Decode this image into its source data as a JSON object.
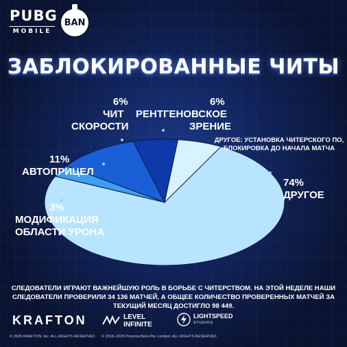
{
  "header": {
    "logo_big": "PUBG",
    "logo_small": "MOBILE",
    "ban_badge": "BAN"
  },
  "chart_data": {
    "type": "pie",
    "title": "ЗАБЛОКИРОВАННЫЕ ЧИТЫ",
    "slices": [
      {
        "label_lines": [
          "ДРУГОЕ"
        ],
        "pct": "74%",
        "value": 74,
        "color": "#b8e4ff"
      },
      {
        "label_lines": [
          "МОДИФИКАЦИЯ",
          "ОБЛАСТИ УРОНА"
        ],
        "pct": "3%",
        "value": 3,
        "color": "#3e9ff0"
      },
      {
        "label_lines": [
          "АВТОПРИЦЕЛ"
        ],
        "pct": "11%",
        "value": 11,
        "color": "#1a5fd6"
      },
      {
        "label_lines": [
          "ЧИТ",
          "СКОРОСТИ"
        ],
        "pct": "6%",
        "value": 6,
        "color": "#0d3aa8"
      },
      {
        "label_lines": [
          "РЕНТГЕНОВСКОЕ",
          "ЗРЕНИЕ"
        ],
        "pct": "6%",
        "value": 6,
        "color": "#d8f3ff"
      }
    ],
    "annotation": "ДРУГОЕ: УСТАНОВКА ЧИТЕРСКОГО ПО, БЛОКИРОВКА ДО НАЧАЛА МАТЧА"
  },
  "footer": {
    "text": "СЛЕДОВАТЕЛИ ИГРАЮТ ВАЖНЕЙШУЮ РОЛЬ В БОРЬБЕ С ЧИТЕРСТВОМ. НА ЭТОЙ НЕДЕЛЕ НАШИ СЛЕДОВАТЕЛИ ПРОВЕРИЛИ 34 136 МАТЧЕЙ, А ОБЩЕЕ КОЛИЧЕСТВО ПРОВЕРЕННЫХ МАТЧЕЙ ЗА ТЕКУЩИЙ МЕСЯЦ ДОСТИГЛО 98 449.",
    "krafton": "KRAFTON",
    "level_line1": "LEVEL",
    "level_line2": "INFINITE",
    "lightspeed": "LIGHTSPEED",
    "lightspeed_sub": "STUDIOS",
    "copy_left": "© 2025 KRAFTON, Inc. ALL RIGHTS RESERVED.",
    "copy_right": "© 2018–2025 Proxima Beta Pte. Limited. ALL RIGHTS RESERVED."
  }
}
